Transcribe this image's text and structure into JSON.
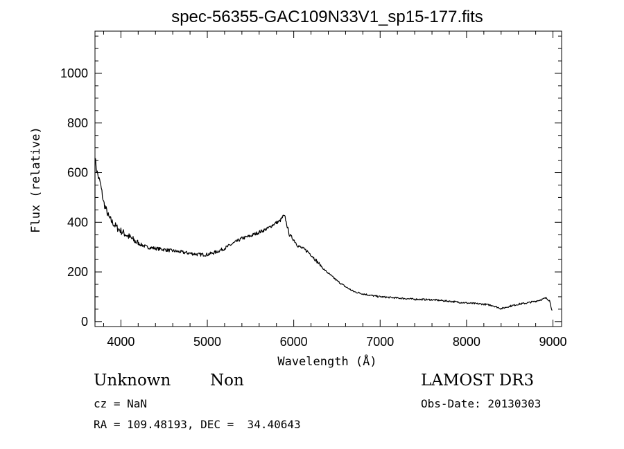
{
  "chart_data": {
    "type": "line",
    "title": "spec-56355-GAC109N33V1_sp15-177.fits",
    "xlabel": "Wavelength (Å)",
    "ylabel": "Flux (relative)",
    "xlim": [
      3700,
      9100
    ],
    "ylim": [
      -20,
      1170
    ],
    "xticks": [
      4000,
      5000,
      6000,
      7000,
      8000,
      9000
    ],
    "xtick_labels": [
      "4000",
      "5000",
      "6000",
      "7000",
      "8000",
      "9000"
    ],
    "yticks": [
      0,
      200,
      400,
      600,
      800,
      1000
    ],
    "ytick_labels": [
      "0",
      "200",
      "400",
      "600",
      "800",
      "1000"
    ],
    "grid": false,
    "legend": "none",
    "series": [
      {
        "color": "#000000",
        "x": [
          3700,
          3720,
          3740,
          3760,
          3780,
          3800,
          3830,
          3860,
          3900,
          3950,
          4000,
          4100,
          4200,
          4300,
          4400,
          4500,
          4600,
          4700,
          4800,
          4900,
          5000,
          5100,
          5200,
          5300,
          5400,
          5500,
          5600,
          5700,
          5780,
          5840,
          5880,
          5900,
          5920,
          5950,
          6000,
          6050,
          6100,
          6150,
          6200,
          6250,
          6300,
          6350,
          6400,
          6500,
          6600,
          6700,
          6800,
          6900,
          7000,
          7200,
          7400,
          7600,
          7800,
          8000,
          8200,
          8300,
          8400,
          8500,
          8600,
          8700,
          8800,
          8880,
          8920,
          8960,
          8990
        ],
        "y": [
          660,
          610,
          580,
          560,
          520,
          480,
          450,
          420,
          400,
          380,
          365,
          340,
          315,
          300,
          295,
          290,
          285,
          280,
          275,
          270,
          270,
          280,
          295,
          315,
          335,
          345,
          360,
          375,
          395,
          405,
          425,
          420,
          390,
          350,
          330,
          305,
          295,
          285,
          270,
          250,
          230,
          210,
          195,
          165,
          140,
          120,
          112,
          105,
          100,
          95,
          90,
          88,
          82,
          75,
          70,
          65,
          52,
          62,
          70,
          75,
          82,
          90,
          95,
          85,
          45
        ]
      }
    ]
  },
  "footer": {
    "object_class": "Unknown",
    "subclass": "Non",
    "survey": "LAMOST DR3",
    "cz": "cz = NaN",
    "obs_date": "Obs-Date: 20130303",
    "coords": "RA = 109.48193, DEC =  34.40643"
  }
}
